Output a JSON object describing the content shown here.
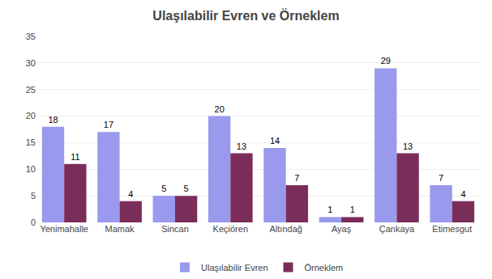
{
  "chart_data": {
    "type": "bar",
    "title": "Ulaşılabilir Evren ve Örneklem",
    "categories": [
      "Yenimahalle",
      "Mamak",
      "Sincan",
      "Keçiören",
      "Altındağ",
      "Ayaş",
      "Çankaya",
      "Etimesgut"
    ],
    "series": [
      {
        "name": "Ulaşılabilir Evren",
        "color": "#9999ee",
        "values": [
          18,
          17,
          5,
          20,
          14,
          1,
          29,
          7
        ]
      },
      {
        "name": "Örneklem",
        "color": "#7b2d5a",
        "values": [
          11,
          4,
          5,
          13,
          7,
          1,
          13,
          4
        ]
      }
    ],
    "ylim": [
      0,
      35
    ],
    "yticks": [
      0,
      5,
      10,
      15,
      20,
      25,
      30,
      35
    ],
    "grid": true,
    "legend": "bottom",
    "data_labels": true
  }
}
